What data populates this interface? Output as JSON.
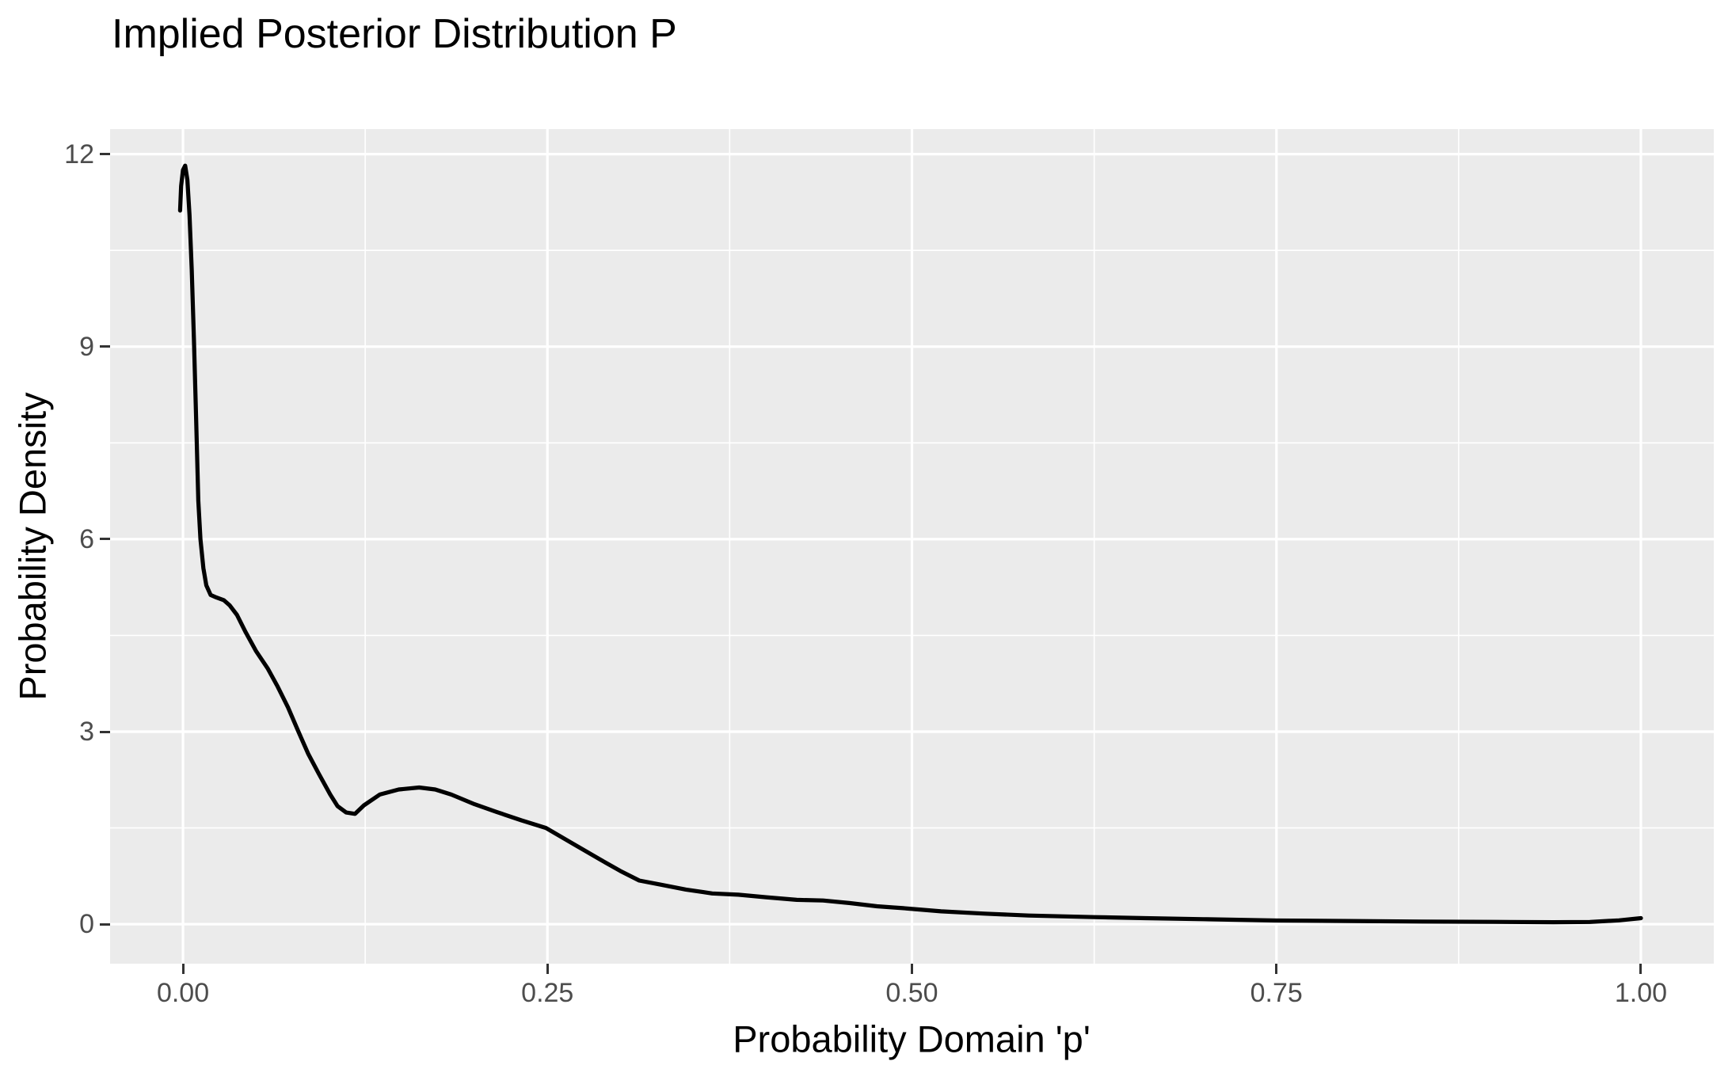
{
  "title": "Implied Posterior Distribution P",
  "colors": {
    "panel_background": "#EBEBEB",
    "grid": "#FFFFFF",
    "curve": "#000000",
    "tick_label": "#4D4D4D",
    "tick_mark": "#333333",
    "title_text": "#000000"
  },
  "chart_data": {
    "type": "line",
    "title": "Implied Posterior Distribution P",
    "xlabel": "Probability Domain 'p'",
    "ylabel": "Probability Density",
    "legend": "none",
    "grid": "major+minor",
    "xlim": [
      -0.05,
      1.05
    ],
    "ylim": [
      -0.615,
      12.39
    ],
    "x_ticks": {
      "values": [
        0,
        0.25,
        0.5,
        0.75,
        1
      ],
      "labels": [
        "0.00",
        "0.25",
        "0.50",
        "0.75",
        "1.00"
      ]
    },
    "y_ticks": {
      "values": [
        0,
        3,
        6,
        9,
        12
      ],
      "labels": [
        "0",
        "3",
        "6",
        "9",
        "12"
      ]
    },
    "series": [
      {
        "name": "posterior-density-curve",
        "color": "#000000",
        "points": [
          [
            -0.002,
            11.12
          ],
          [
            -0.0013,
            11.5
          ],
          [
            0.0,
            11.75
          ],
          [
            0.0015,
            11.82
          ],
          [
            0.003,
            11.6
          ],
          [
            0.0045,
            11.05
          ],
          [
            0.006,
            10.2
          ],
          [
            0.0075,
            9.1
          ],
          [
            0.009,
            7.9
          ],
          [
            0.0105,
            6.6
          ],
          [
            0.012,
            6.0
          ],
          [
            0.014,
            5.55
          ],
          [
            0.016,
            5.28
          ],
          [
            0.019,
            5.13
          ],
          [
            0.023,
            5.09
          ],
          [
            0.028,
            5.05
          ],
          [
            0.032,
            4.97
          ],
          [
            0.037,
            4.82
          ],
          [
            0.043,
            4.55
          ],
          [
            0.05,
            4.26
          ],
          [
            0.058,
            3.99
          ],
          [
            0.065,
            3.7
          ],
          [
            0.072,
            3.38
          ],
          [
            0.079,
            3.01
          ],
          [
            0.086,
            2.65
          ],
          [
            0.093,
            2.35
          ],
          [
            0.101,
            2.02
          ],
          [
            0.106,
            1.84
          ],
          [
            0.112,
            1.74
          ],
          [
            0.118,
            1.72
          ],
          [
            0.124,
            1.85
          ],
          [
            0.135,
            2.02
          ],
          [
            0.148,
            2.1
          ],
          [
            0.162,
            2.13
          ],
          [
            0.173,
            2.1
          ],
          [
            0.184,
            2.02
          ],
          [
            0.2,
            1.87
          ],
          [
            0.215,
            1.75
          ],
          [
            0.232,
            1.62
          ],
          [
            0.249,
            1.5
          ],
          [
            0.267,
            1.26
          ],
          [
            0.286,
            1.01
          ],
          [
            0.3,
            0.83
          ],
          [
            0.313,
            0.68
          ],
          [
            0.327,
            0.62
          ],
          [
            0.345,
            0.54
          ],
          [
            0.363,
            0.48
          ],
          [
            0.381,
            0.46
          ],
          [
            0.4,
            0.42
          ],
          [
            0.421,
            0.38
          ],
          [
            0.439,
            0.37
          ],
          [
            0.457,
            0.33
          ],
          [
            0.476,
            0.28
          ],
          [
            0.494,
            0.25
          ],
          [
            0.52,
            0.2
          ],
          [
            0.55,
            0.165
          ],
          [
            0.58,
            0.135
          ],
          [
            0.625,
            0.11
          ],
          [
            0.66,
            0.095
          ],
          [
            0.7,
            0.078
          ],
          [
            0.75,
            0.058
          ],
          [
            0.8,
            0.05
          ],
          [
            0.85,
            0.042
          ],
          [
            0.9,
            0.036
          ],
          [
            0.94,
            0.032
          ],
          [
            0.965,
            0.035
          ],
          [
            0.985,
            0.06
          ],
          [
            1.0,
            0.095
          ]
        ]
      }
    ]
  }
}
